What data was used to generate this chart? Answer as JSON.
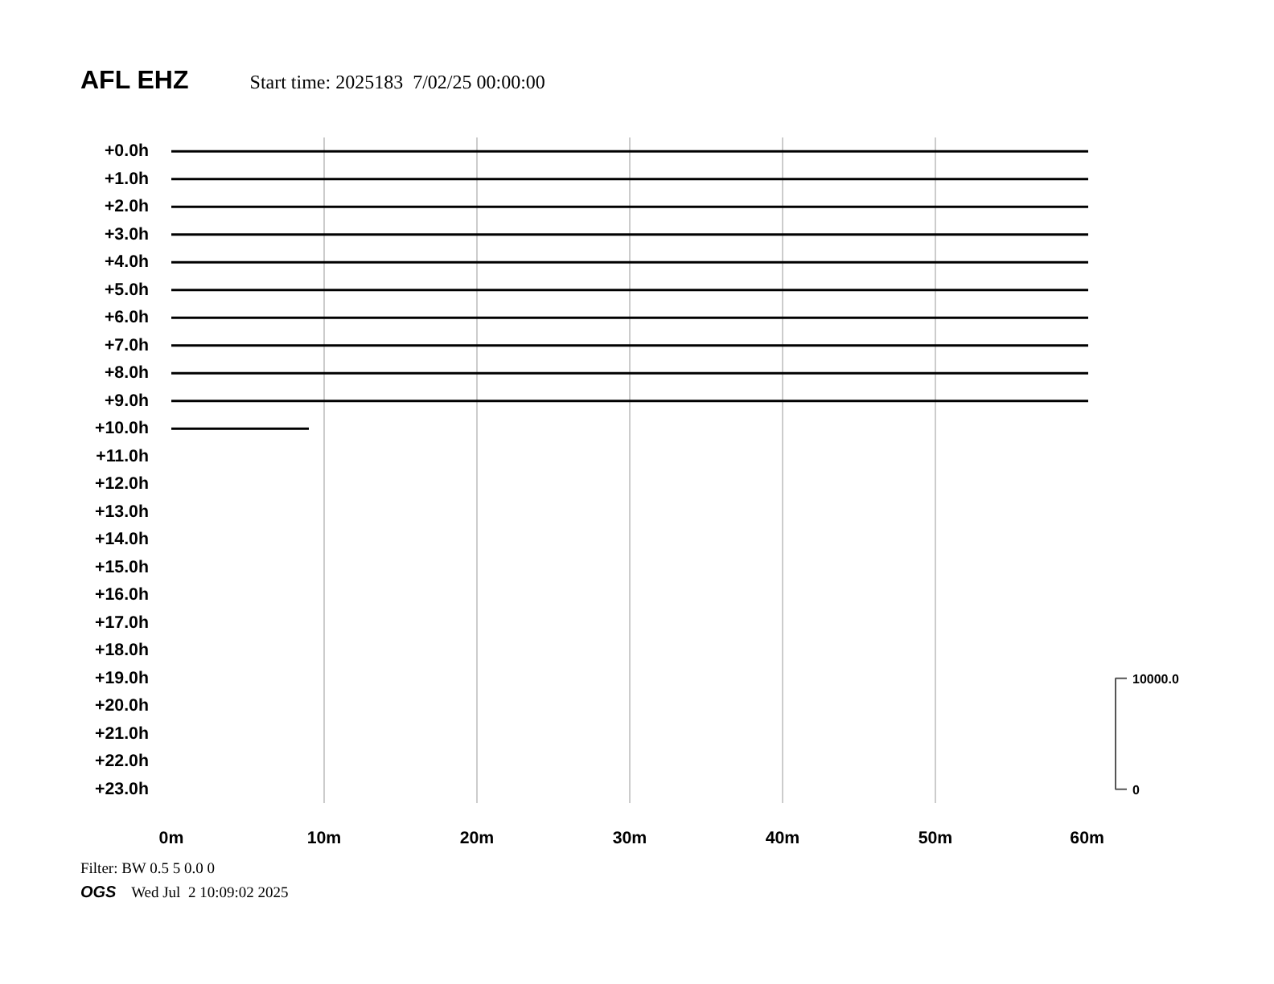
{
  "chart_data": {
    "type": "line",
    "title": "AFL EHZ",
    "subtitle": "Start time: 2025183  7/02/25 00:00:00",
    "annotations": [
      "Filter: BW 0.5 5 0.0 0",
      "OGS    Wed Jul  2 10:09:02 2025",
      "10000.0",
      "0"
    ],
    "xlim": [
      0,
      60
    ],
    "xticks": [
      {
        "value": 0,
        "label": "0m"
      },
      {
        "value": 10,
        "label": "10m"
      },
      {
        "value": 20,
        "label": "20m"
      },
      {
        "value": 30,
        "label": "30m"
      },
      {
        "value": 40,
        "label": "40m"
      },
      {
        "value": 50,
        "label": "50m"
      },
      {
        "value": 60,
        "label": "60m"
      }
    ],
    "ylim": [
      23.5,
      -0.5
    ],
    "yticks": [
      {
        "value": 0,
        "label": "+0.0h"
      },
      {
        "value": 1,
        "label": "+1.0h"
      },
      {
        "value": 2,
        "label": "+2.0h"
      },
      {
        "value": 3,
        "label": "+3.0h"
      },
      {
        "value": 4,
        "label": "+4.0h"
      },
      {
        "value": 5,
        "label": "+5.0h"
      },
      {
        "value": 6,
        "label": "+6.0h"
      },
      {
        "value": 7,
        "label": "+7.0h"
      },
      {
        "value": 8,
        "label": "+8.0h"
      },
      {
        "value": 9,
        "label": "+9.0h"
      },
      {
        "value": 10,
        "label": "+10.0h"
      },
      {
        "value": 11,
        "label": "+11.0h"
      },
      {
        "value": 12,
        "label": "+12.0h"
      },
      {
        "value": 13,
        "label": "+13.0h"
      },
      {
        "value": 14,
        "label": "+14.0h"
      },
      {
        "value": 15,
        "label": "+15.0h"
      },
      {
        "value": 16,
        "label": "+16.0h"
      },
      {
        "value": 17,
        "label": "+17.0h"
      },
      {
        "value": 18,
        "label": "+18.0h"
      },
      {
        "value": 19,
        "label": "+19.0h"
      },
      {
        "value": 20,
        "label": "+20.0h"
      },
      {
        "value": 21,
        "label": "+21.0h"
      },
      {
        "value": 22,
        "label": "+22.0h"
      },
      {
        "value": 23,
        "label": "+23.0h"
      }
    ],
    "grid": "x",
    "series": [
      {
        "color": "#000000",
        "x": [
          0,
          60
        ],
        "values": [
          0,
          0
        ]
      },
      {
        "color": "#000000",
        "x": [
          0,
          60
        ],
        "values": [
          1,
          1
        ]
      },
      {
        "color": "#000000",
        "x": [
          0,
          60
        ],
        "values": [
          2,
          2
        ]
      },
      {
        "color": "#000000",
        "x": [
          0,
          60
        ],
        "values": [
          3,
          3
        ]
      },
      {
        "color": "#000000",
        "x": [
          0,
          60
        ],
        "values": [
          4,
          4
        ]
      },
      {
        "color": "#000000",
        "x": [
          0,
          60
        ],
        "values": [
          5,
          5
        ]
      },
      {
        "color": "#000000",
        "x": [
          0,
          60
        ],
        "values": [
          6,
          6
        ]
      },
      {
        "color": "#000000",
        "x": [
          0,
          60
        ],
        "values": [
          7,
          7
        ]
      },
      {
        "color": "#000000",
        "x": [
          0,
          60
        ],
        "values": [
          8,
          8
        ]
      },
      {
        "color": "#000000",
        "x": [
          0,
          60
        ],
        "values": [
          9,
          9
        ]
      },
      {
        "color": "#000000",
        "x": [
          0,
          9
        ],
        "values": [
          10,
          10
        ]
      }
    ]
  }
}
